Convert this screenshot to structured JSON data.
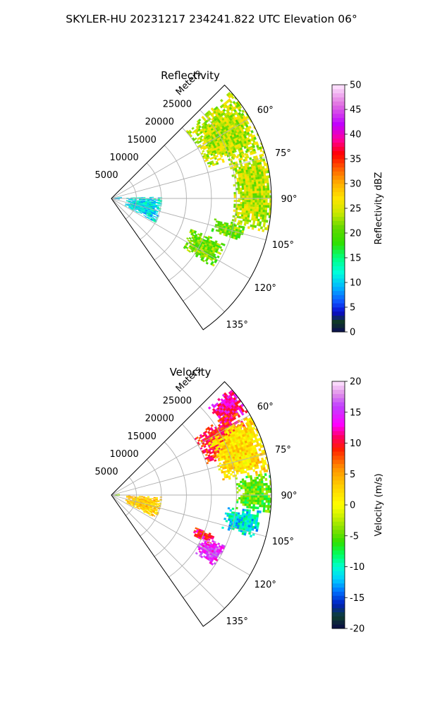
{
  "figure_title": "SKYLER-HU  20231217  234241.822 UTC Elevation 06°",
  "chart_data": [
    {
      "type": "heatmap",
      "projection": "polar-sector",
      "title": "Reflectivity",
      "radial_axis_label": "Meters",
      "radial_ticks": [
        5000,
        10000,
        15000,
        20000,
        25000
      ],
      "radial_max": 32000,
      "angular_range": [
        45,
        145
      ],
      "angular_ticks": [
        "60°",
        "75°",
        "90°",
        "105°",
        "120°",
        "135°"
      ],
      "angular_tick_values": [
        60,
        75,
        90,
        105,
        120,
        135
      ],
      "colorbar": {
        "label": "Reflectivity dBZ",
        "range": [
          0,
          50
        ],
        "ticks": [
          "0",
          "5",
          "10",
          "15",
          "20",
          "25",
          "30",
          "35",
          "40",
          "45",
          "50"
        ],
        "colormap": "nws_reflectivity"
      },
      "echo_regions": [
        {
          "theta": [
            48,
            72
          ],
          "r": [
            20000,
            32000
          ],
          "mean": 24
        },
        {
          "theta": [
            70,
            102
          ],
          "r": [
            24500,
            32000
          ],
          "mean": 24
        },
        {
          "theta": [
            101,
            108
          ],
          "r": [
            21000,
            27000
          ],
          "mean": 21
        },
        {
          "theta": [
            111,
            124
          ],
          "r": [
            17000,
            24500
          ],
          "mean": 21
        },
        {
          "theta": [
            82,
            96
          ],
          "r": [
            0,
            1700
          ],
          "mean": 10
        },
        {
          "theta": [
            88,
            118
          ],
          "r": [
            3000,
            10000
          ],
          "mean": 11
        }
      ]
    },
    {
      "type": "heatmap",
      "projection": "polar-sector",
      "title": "Velocity",
      "radial_axis_label": "Meters",
      "radial_ticks": [
        5000,
        10000,
        15000,
        20000,
        25000
      ],
      "radial_max": 32000,
      "angular_range": [
        45,
        145
      ],
      "angular_ticks": [
        "60°",
        "75°",
        "90°",
        "105°",
        "120°",
        "135°"
      ],
      "angular_tick_values": [
        60,
        75,
        90,
        105,
        120,
        135
      ],
      "colorbar": {
        "label": "Velocity (m/s)",
        "range": [
          -20,
          20
        ],
        "ticks": [
          "-20",
          "-15",
          "-10",
          "-5",
          "0",
          "5",
          "10",
          "15",
          "20"
        ],
        "colormap": "velocity"
      },
      "echo_regions": [
        {
          "theta": [
            48,
            58
          ],
          "r": [
            26000,
            32000
          ],
          "mean": 12
        },
        {
          "theta": [
            55,
            72
          ],
          "r": [
            20000,
            30000
          ],
          "mean": 9
        },
        {
          "theta": [
            60,
            82
          ],
          "r": [
            22000,
            32000
          ],
          "mean": 2
        },
        {
          "theta": [
            82,
            96
          ],
          "r": [
            25000,
            32000
          ],
          "mean": -5
        },
        {
          "theta": [
            96,
            106
          ],
          "r": [
            23000,
            30000
          ],
          "mean": -11
        },
        {
          "theta": [
            111,
            116
          ],
          "r": [
            18000,
            22000
          ],
          "mean": 10
        },
        {
          "theta": [
            114,
            124
          ],
          "r": [
            20000,
            25000
          ],
          "mean": 15
        },
        {
          "theta": [
            84,
            96
          ],
          "r": [
            0,
            1600
          ],
          "mean": -3
        },
        {
          "theta": [
            92,
            118
          ],
          "r": [
            3000,
            10000
          ],
          "mean": 3
        }
      ]
    }
  ]
}
